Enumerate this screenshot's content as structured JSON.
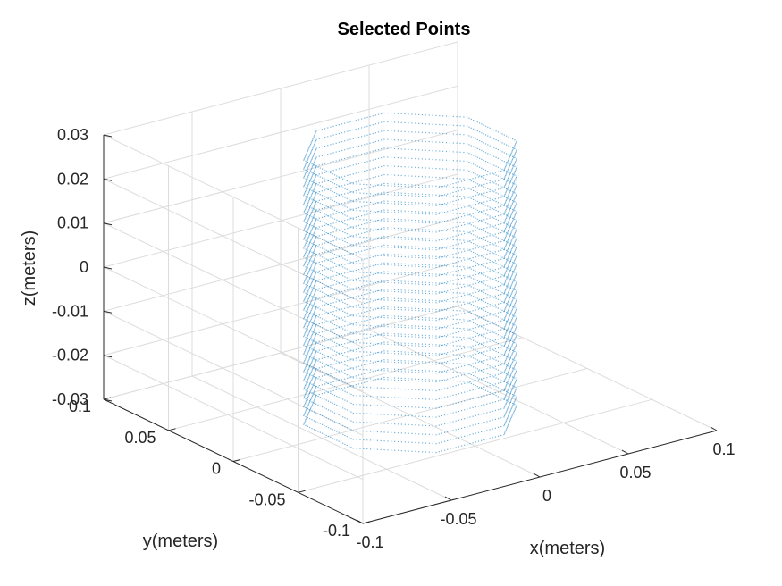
{
  "chart_data": {
    "type": "scatter",
    "title": "Selected Points",
    "xlabel": "x(meters)",
    "ylabel": "y(meters)",
    "zlabel": "z(meters)",
    "xlim": [
      -0.1,
      0.1
    ],
    "ylim": [
      -0.1,
      0.1
    ],
    "zlim": [
      -0.03,
      0.03
    ],
    "xticks": [
      -0.1,
      -0.05,
      0,
      0.05,
      0.1
    ],
    "yticks": [
      -0.1,
      -0.05,
      0,
      0.05,
      0.1
    ],
    "zticks": [
      -0.03,
      -0.02,
      -0.01,
      0,
      0.01,
      0.02,
      0.03
    ],
    "xtick_labels": [
      "-0.1",
      "-0.05",
      "0",
      "0.05",
      "0.1"
    ],
    "ytick_labels": [
      "-0.1",
      "-0.05",
      "0",
      "0.05",
      "0.1"
    ],
    "ztick_labels": [
      "-0.03",
      "-0.02",
      "-0.01",
      "0",
      "0.01",
      "0.02",
      "0.03"
    ],
    "grid": true,
    "view": "3d",
    "marker_color": "#0072bd",
    "series": [
      {
        "shape": "octagonal-prism-shell",
        "center": [
          0,
          0
        ],
        "circumradius": 0.05,
        "z_range": [
          -0.03,
          0.03
        ],
        "z_layers": 30,
        "points_per_edge": 24
      }
    ]
  }
}
